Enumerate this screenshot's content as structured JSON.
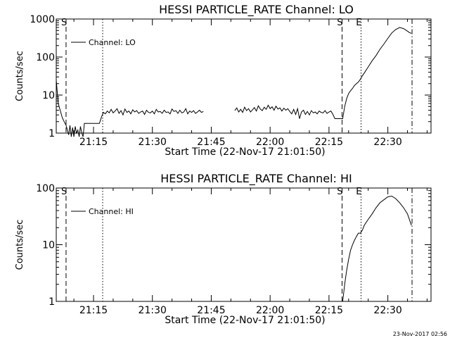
{
  "footer_timestamp": "23-Nov-2017 02:56",
  "chart_data": [
    {
      "type": "line",
      "title": "HESSI PARTICLE_RATE Channel: LO",
      "xlabel": "Start Time (22-Nov-17 21:01:50)",
      "ylabel": "Counts/sec",
      "yscale": "log",
      "xlim": [
        "21:05:30",
        "22:41:00"
      ],
      "ylim": [
        1,
        1000
      ],
      "x_ticks": [
        "21:15",
        "21:30",
        "21:45",
        "22:00",
        "22:15",
        "22:30"
      ],
      "y_ticks": [
        "1",
        "10",
        "100",
        "1000"
      ],
      "legend": {
        "label": "Channel: LO",
        "placement": "top-left"
      },
      "markers": [
        {
          "label": "S",
          "time": "21:08:00",
          "style": "dashed"
        },
        {
          "label": "",
          "time": "21:17:20",
          "style": "dotted"
        },
        {
          "label": "S",
          "time": "22:18:20",
          "style": "dashed"
        },
        {
          "label": "E",
          "time": "22:23:10",
          "style": "dotted"
        },
        {
          "label": "",
          "time": "22:36:10",
          "style": "dash-dot"
        }
      ],
      "series": [
        {
          "segments": [
            {
              "x": [
                "21:05:30",
                "21:06:00",
                "21:06:30",
                "21:07:00",
                "21:07:30",
                "21:08:00",
                "21:08:20",
                "21:08:40",
                "21:09:00",
                "21:09:20",
                "21:09:40",
                "21:10:00",
                "21:10:20",
                "21:10:40",
                "21:11:00",
                "21:11:20",
                "21:11:40",
                "21:12:00",
                "21:12:20",
                "21:12:40",
                "21:13:00",
                "21:13:30",
                "21:14:00",
                "21:14:30",
                "21:15:00",
                "21:15:30",
                "21:16:00",
                "21:16:30",
                "21:17:00",
                "21:17:30",
                "21:18:00",
                "21:18:30",
                "21:19:00",
                "21:19:30",
                "21:20:00",
                "21:20:30",
                "21:21:00",
                "21:21:30",
                "21:22:00",
                "21:22:30",
                "21:23:00",
                "21:23:30",
                "21:24:00",
                "21:24:30",
                "21:25:00",
                "21:25:30",
                "21:26:00",
                "21:26:30",
                "21:27:00",
                "21:27:30",
                "21:28:00",
                "21:28:30",
                "21:29:00",
                "21:29:30",
                "21:30:00",
                "21:30:30",
                "21:31:00",
                "21:31:30",
                "21:32:00",
                "21:32:30",
                "21:33:00",
                "21:33:30",
                "21:34:00",
                "21:34:30",
                "21:35:00",
                "21:35:30",
                "21:36:00",
                "21:36:30",
                "21:37:00",
                "21:37:30",
                "21:38:00",
                "21:38:30",
                "21:39:00",
                "21:39:30",
                "21:40:00",
                "21:40:30",
                "21:41:00",
                "21:41:30",
                "21:42:00",
                "21:42:30",
                "21:43:00"
              ],
              "y": [
                25,
                6,
                4,
                2.6,
                2,
                1.6,
                1.2,
                0.9,
                1.6,
                0.8,
                1.4,
                0.8,
                1.5,
                1,
                1.2,
                0.8,
                1.5,
                1,
                0.8,
                1.8,
                1.8,
                1.8,
                1.8,
                1.8,
                1.8,
                1.8,
                1.8,
                1.8,
                2.6,
                3.5,
                3.2,
                3.8,
                3.4,
                4.2,
                3.4,
                3.8,
                4.4,
                3.3,
                3.9,
                3,
                4.3,
                3.5,
                3.8,
                3.2,
                4.1,
                3.6,
                3.9,
                3.3,
                3.6,
                3.8,
                3.1,
                4,
                3.5,
                3.4,
                3.8,
                3.2,
                4.2,
                3.6,
                3.7,
                3.3,
                4,
                3.5,
                3.6,
                3.2,
                4.3,
                3.7,
                3.9,
                3.3,
                4,
                3.4,
                3.6,
                4.4,
                3.2,
                3.8,
                3.5,
                3.9,
                3.3,
                3.6,
                4,
                3.5,
                3.7
              ]
            },
            {
              "x": [
                "21:51:00",
                "21:51:30",
                "21:52:00",
                "21:52:30",
                "21:53:00",
                "21:53:30",
                "21:54:00",
                "21:54:30",
                "21:55:00",
                "21:55:30",
                "21:56:00",
                "21:56:30",
                "21:57:00",
                "21:57:30",
                "21:58:00",
                "21:58:30",
                "21:59:00",
                "21:59:30",
                "22:00:00",
                "22:00:30",
                "22:01:00",
                "22:01:30",
                "22:02:00",
                "22:02:30",
                "22:03:00",
                "22:03:30",
                "22:04:00",
                "22:04:30",
                "22:05:00",
                "22:05:30",
                "22:06:00",
                "22:06:30",
                "22:07:00",
                "22:07:30",
                "22:08:00",
                "22:08:30",
                "22:09:00",
                "22:09:30",
                "22:10:00",
                "22:10:30",
                "22:11:00",
                "22:11:30",
                "22:12:00",
                "22:12:30",
                "22:13:00",
                "22:13:30",
                "22:14:00",
                "22:14:30",
                "22:15:00",
                "22:15:30",
                "22:16:00",
                "22:16:30",
                "22:17:00",
                "22:17:30",
                "22:18:00",
                "22:18:30",
                "22:19:00",
                "22:19:30",
                "22:20:00",
                "22:20:30",
                "22:21:00",
                "22:21:30",
                "22:22:00",
                "22:22:30",
                "22:23:00",
                "22:23:30",
                "22:24:00",
                "22:25:00",
                "22:26:00",
                "22:27:00",
                "22:28:00",
                "22:29:00",
                "22:30:00",
                "22:31:00",
                "22:32:00",
                "22:33:00",
                "22:34:00",
                "22:35:00",
                "22:35:30",
                "22:36:00"
              ],
              "y": [
                3.9,
                4.6,
                3.6,
                4.2,
                3.5,
                4.8,
                3.9,
                4.4,
                3.6,
                4.1,
                4.7,
                3.8,
                5.2,
                4.3,
                3.9,
                4.8,
                4.2,
                5.4,
                4.4,
                4.9,
                4,
                5.1,
                4.3,
                4.6,
                3.8,
                4.5,
                4,
                4.4,
                3.7,
                3.2,
                4.2,
                3.1,
                4.4,
                2.4,
                3.6,
                4,
                3.1,
                3.7,
                3,
                3.9,
                3.4,
                3.6,
                3.2,
                3.8,
                3.5,
                3.4,
                3.9,
                3.3,
                3.6,
                3.8,
                3.1,
                2.4,
                2.4,
                2.4,
                2.4,
                2.4,
                5,
                8,
                11,
                13,
                15,
                18,
                20,
                22,
                26,
                32,
                38,
                55,
                80,
                110,
                160,
                220,
                310,
                430,
                530,
                600,
                560,
                480,
                440,
                420
              ]
            }
          ]
        }
      ]
    },
    {
      "type": "line",
      "title": "HESSI PARTICLE_RATE Channel: HI",
      "xlabel": "Start Time (22-Nov-17 21:01:50)",
      "ylabel": "Counts/sec",
      "yscale": "log",
      "xlim": [
        "21:05:30",
        "22:41:00"
      ],
      "ylim": [
        1,
        100
      ],
      "x_ticks": [
        "21:15",
        "21:30",
        "21:45",
        "22:00",
        "22:15",
        "22:30"
      ],
      "y_ticks": [
        "1",
        "10",
        "100"
      ],
      "legend": {
        "label": "Channel: HI",
        "placement": "top-left"
      },
      "markers": [
        {
          "label": "S",
          "time": "21:08:00",
          "style": "dashed"
        },
        {
          "label": "",
          "time": "21:17:20",
          "style": "dotted"
        },
        {
          "label": "S",
          "time": "22:18:20",
          "style": "dashed"
        },
        {
          "label": "E",
          "time": "22:23:10",
          "style": "dotted"
        },
        {
          "label": "",
          "time": "22:36:10",
          "style": "dash-dot"
        }
      ],
      "series": [
        {
          "segments": [
            {
              "x": [
                "22:18:30",
                "22:19:00",
                "22:19:30",
                "22:20:00",
                "22:20:30",
                "22:21:00",
                "22:21:30",
                "22:22:00",
                "22:22:30",
                "22:23:00",
                "22:23:30",
                "22:24:00",
                "22:25:00",
                "22:26:00",
                "22:27:00",
                "22:28:00",
                "22:29:00",
                "22:30:00",
                "22:31:00",
                "22:32:00",
                "22:33:00",
                "22:34:00",
                "22:35:00",
                "22:36:00"
              ],
              "y": [
                1,
                2,
                3.5,
                5.5,
                8,
                10,
                12,
                14,
                16,
                16,
                18,
                22,
                28,
                35,
                45,
                55,
                62,
                70,
                72,
                65,
                55,
                45,
                35,
                22
              ]
            }
          ]
        }
      ]
    }
  ]
}
